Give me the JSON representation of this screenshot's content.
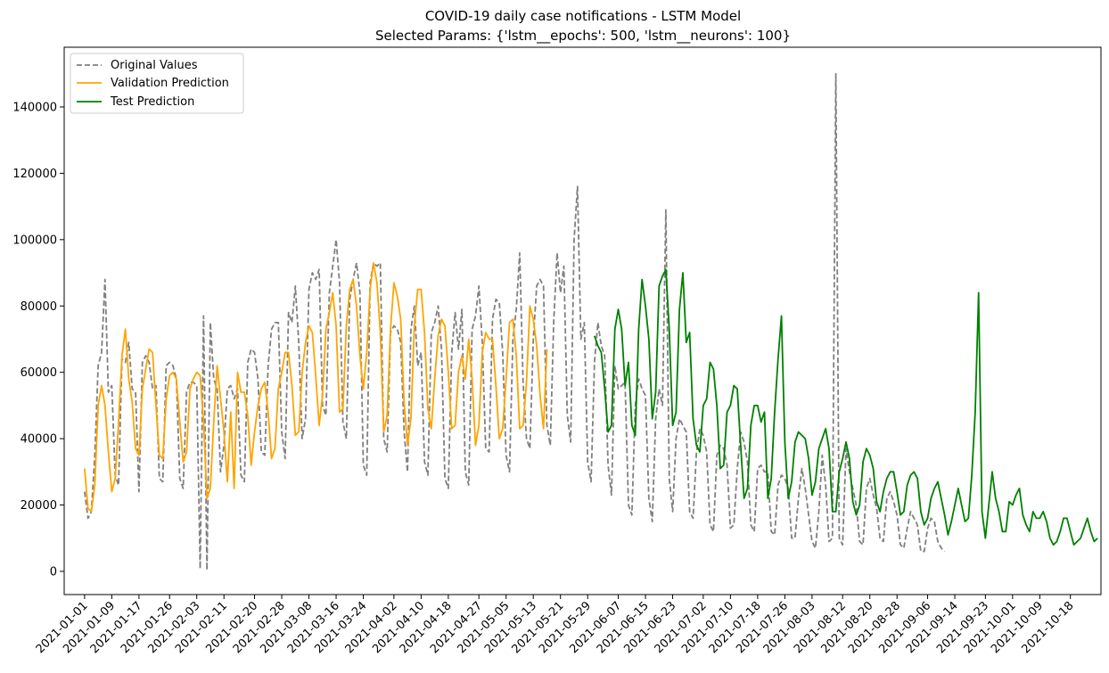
{
  "chart_data": {
    "type": "line",
    "title": "COVID-19 daily case notifications - LSTM Model",
    "subtitle": "Selected Params: {'lstm__epochs': 500, 'lstm__neurons': 100}",
    "xlabel": "",
    "ylabel": "",
    "ylim": [
      -7000,
      158000
    ],
    "yticks": [
      0,
      20000,
      40000,
      60000,
      80000,
      100000,
      120000,
      140000
    ],
    "xlim": [
      "2020-12-26",
      "2021-10-27"
    ],
    "xticks": [
      "2021-01-01",
      "2021-01-09",
      "2021-01-17",
      "2021-01-26",
      "2021-02-03",
      "2021-02-11",
      "2021-02-20",
      "2021-02-28",
      "2021-03-08",
      "2021-03-16",
      "2021-03-24",
      "2021-04-02",
      "2021-04-10",
      "2021-04-18",
      "2021-04-27",
      "2021-05-05",
      "2021-05-13",
      "2021-05-21",
      "2021-05-29",
      "2021-06-07",
      "2021-06-15",
      "2021-06-23",
      "2021-07-02",
      "2021-07-10",
      "2021-07-18",
      "2021-07-26",
      "2021-08-03",
      "2021-08-12",
      "2021-08-20",
      "2021-08-28",
      "2021-09-06",
      "2021-09-14",
      "2021-09-23",
      "2021-10-01",
      "2021-10-09",
      "2021-10-18"
    ],
    "grid": false,
    "legend_position": "top-left",
    "series": [
      {
        "name": "Original Values",
        "color": "#808080",
        "style": "dashed",
        "x_start": "2021-01-01",
        "values": [
          24000,
          16000,
          18000,
          35000,
          62000,
          66000,
          88000,
          54000,
          56000,
          29000,
          26000,
          64000,
          63000,
          69000,
          55000,
          54000,
          24000,
          63000,
          65000,
          63000,
          55000,
          56000,
          28000,
          27000,
          62000,
          63000,
          62000,
          58000,
          28000,
          25000,
          54000,
          57000,
          57000,
          56000,
          800,
          77000,
          400,
          75000,
          58000,
          55000,
          30000,
          38000,
          55000,
          56000,
          52000,
          55000,
          29000,
          27000,
          63000,
          67000,
          66000,
          58000,
          36000,
          35000,
          62000,
          73000,
          75000,
          75000,
          42000,
          34000,
          78000,
          75000,
          86000,
          69000,
          40000,
          46000,
          85000,
          90000,
          88000,
          91000,
          50000,
          47000,
          84000,
          92000,
          100000,
          87000,
          45000,
          40000,
          82000,
          88000,
          93000,
          84000,
          32000,
          29000,
          87000,
          93000,
          92000,
          93000,
          40000,
          36000,
          72000,
          74000,
          73000,
          69000,
          42000,
          30000,
          73000,
          80000,
          62000,
          66000,
          33000,
          29000,
          72000,
          75000,
          80000,
          67000,
          28000,
          25000,
          66000,
          78000,
          67000,
          79000,
          30000,
          26000,
          73000,
          77000,
          86000,
          69000,
          37000,
          36000,
          76000,
          82000,
          81000,
          66000,
          35000,
          30000,
          70000,
          79000,
          96000,
          57000,
          40000,
          37000,
          70000,
          86000,
          88000,
          86000,
          44000,
          38000,
          75000,
          96000,
          84000,
          92000,
          47000,
          39000,
          100000,
          116000,
          70000,
          75000,
          33000,
          27000,
          63000,
          75000,
          68000,
          65000,
          32000,
          23000,
          62000,
          55000,
          56000,
          57000,
          20000,
          17000,
          50000,
          58000,
          55000,
          53000,
          22000,
          15000,
          46000,
          55000,
          50000,
          109000,
          28000,
          18000,
          40000,
          46000,
          44000,
          42000,
          18000,
          16000,
          36000,
          43000,
          41000,
          36000,
          14000,
          12000,
          35000,
          38000,
          37000,
          32000,
          13000,
          14000,
          31000,
          42000,
          39000,
          33000,
          14000,
          12000,
          31000,
          32000,
          30000,
          30000,
          12000,
          11000,
          26000,
          29000,
          28000,
          25000,
          10000,
          10000,
          22000,
          31000,
          25000,
          17000,
          9000,
          7000,
          18000,
          35000,
          26000,
          9000,
          10000,
          150000,
          10000,
          8000,
          37000,
          30000,
          25000,
          20000,
          9000,
          8000,
          25000,
          28000,
          23000,
          19000,
          10000,
          9000,
          22000,
          24000,
          21000,
          17000,
          8000,
          7000,
          13000,
          18000,
          16000,
          14000,
          6000,
          6000,
          13000,
          16000,
          15000,
          9000,
          7000,
          6000
        ]
      },
      {
        "name": "Validation Prediction",
        "color": "#ffa500",
        "style": "solid",
        "x_start": "2021-01-01",
        "values": [
          31000,
          19000,
          18000,
          26000,
          50000,
          56000,
          50000,
          36000,
          24000,
          28000,
          45000,
          65000,
          73000,
          58000,
          51000,
          37000,
          35000,
          55000,
          61000,
          67000,
          66000,
          50000,
          35000,
          34000,
          52000,
          59000,
          60000,
          58000,
          45000,
          33000,
          36000,
          55000,
          58000,
          60000,
          59000,
          45000,
          22000,
          25000,
          45000,
          62000,
          52000,
          42000,
          27000,
          48000,
          25000,
          60000,
          54000,
          54000,
          47000,
          32000,
          42000,
          50000,
          55000,
          57000,
          48000,
          34000,
          37000,
          55000,
          60000,
          66000,
          66000,
          56000,
          41000,
          42000,
          60000,
          69000,
          74000,
          72000,
          59000,
          44000,
          53000,
          73000,
          78000,
          84000,
          74000,
          48000,
          49000,
          74000,
          85000,
          88000,
          80000,
          65000,
          55000,
          66000,
          85000,
          93000,
          87000,
          72000,
          42000,
          47000,
          73000,
          87000,
          83000,
          76000,
          51000,
          38000,
          46000,
          74000,
          85000,
          85000,
          72000,
          49000,
          43000,
          58000,
          71000,
          76000,
          74000,
          60000,
          43000,
          44000,
          60000,
          65000,
          58000,
          70000,
          58000,
          38000,
          44000,
          66000,
          72000,
          70000,
          70000,
          56000,
          40000,
          43000,
          58000,
          75000,
          76000,
          65000,
          43000,
          44000,
          57000,
          80000,
          76000,
          68000,
          53000,
          43000,
          67000
        ]
      },
      {
        "name": "Test Prediction",
        "color": "#008000",
        "style": "solid",
        "x_start": "2021-05-31",
        "values": [
          71000,
          68000,
          66000,
          55000,
          42000,
          44000,
          73000,
          79000,
          73000,
          56000,
          63000,
          44000,
          41000,
          73000,
          88000,
          80000,
          70000,
          46000,
          54000,
          86000,
          89000,
          91000,
          73000,
          44000,
          48000,
          79000,
          90000,
          69000,
          72000,
          46000,
          38000,
          36000,
          50000,
          52000,
          63000,
          61000,
          50000,
          31000,
          32000,
          48000,
          50000,
          56000,
          55000,
          38000,
          22000,
          25000,
          44000,
          50000,
          50000,
          45000,
          48000,
          22000,
          28000,
          48000,
          64000,
          77000,
          39000,
          22000,
          27000,
          39000,
          42000,
          41000,
          40000,
          34000,
          23000,
          27000,
          37000,
          40000,
          43000,
          37000,
          18000,
          18000,
          30000,
          34000,
          39000,
          34000,
          21000,
          17000,
          20000,
          33000,
          37000,
          35000,
          31000,
          21000,
          18000,
          24000,
          28000,
          30000,
          30000,
          24000,
          17000,
          18000,
          26000,
          29000,
          30000,
          28000,
          18000,
          14000,
          16000,
          22000,
          25000,
          27000,
          22000,
          17000,
          11000,
          15000,
          20000,
          25000,
          20000,
          15000,
          16000,
          29000,
          48000,
          84000,
          18000,
          10000,
          20000,
          30000,
          22000,
          18000,
          12000,
          12000,
          21000,
          20000,
          23000,
          25000,
          17000,
          14000,
          12000,
          18000,
          16000,
          16000,
          18000,
          15000,
          10000,
          8000,
          9000,
          12000,
          16000,
          16000,
          12000,
          8000,
          9000,
          10000,
          13000,
          16000,
          12000,
          9000,
          10000
        ]
      }
    ]
  }
}
